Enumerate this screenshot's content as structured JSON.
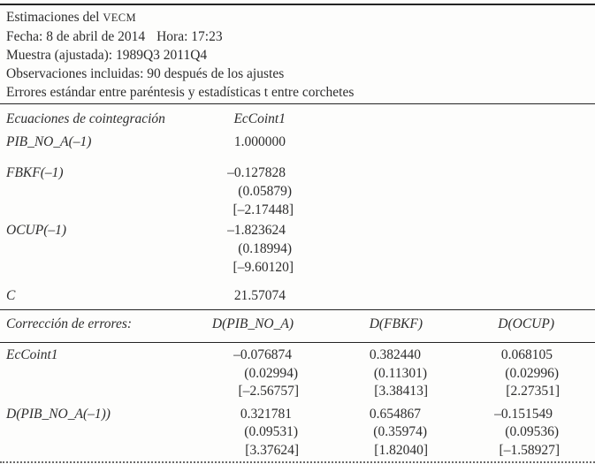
{
  "header": {
    "title_prefix": "Estimaciones del ",
    "title_acronym": "VECM",
    "fecha": "Fecha: 8 de abril de 2014",
    "hora": "Hora: 17:23",
    "muestra": "Muestra (ajustada): 1989Q3 2011Q4",
    "observaciones": "Observaciones incluidas: 90 después de los ajustes",
    "nota": "Errores estándar entre paréntesis y estadísticas t entre corchetes"
  },
  "cointegration": {
    "header_label": "Ecuaciones de cointegración",
    "header_col": "EcCoint1",
    "rows": [
      {
        "label": "PIB_NO_A(–1)",
        "coef": "1.000000"
      },
      {
        "label": "FBKF(–1)",
        "coef": "–0.127828",
        "se": "(0.05879)",
        "t": "[–2.17448]"
      },
      {
        "label": "OCUP(–1)",
        "coef": "–1.823624",
        "se": "(0.18994)",
        "t": "[–9.60120]"
      },
      {
        "label": "C",
        "coef": "21.57074"
      }
    ]
  },
  "error_correction": {
    "header_label": "Corrección de errores:",
    "columns": [
      "D(PIB_NO_A)",
      "D(FBKF)",
      "D(OCUP)"
    ],
    "rows": [
      {
        "label": "EcCoint1",
        "coefs": [
          "–0.076874",
          "0.382440",
          "0.068105"
        ],
        "ses": [
          "(0.02994)",
          "(0.11301)",
          "(0.02996)"
        ],
        "ts": [
          "[–2.56757]",
          "[3.38413]",
          "[2.27351]"
        ]
      },
      {
        "label": "D(PIB_NO_A(–1))",
        "coefs": [
          "0.321781",
          "0.654867",
          "–0.151549"
        ],
        "ses": [
          "(0.09531)",
          "(0.35974)",
          "(0.09536)"
        ],
        "ts": [
          "[3.37624]",
          "[1.82040]",
          "[–1.58927]"
        ]
      }
    ]
  }
}
